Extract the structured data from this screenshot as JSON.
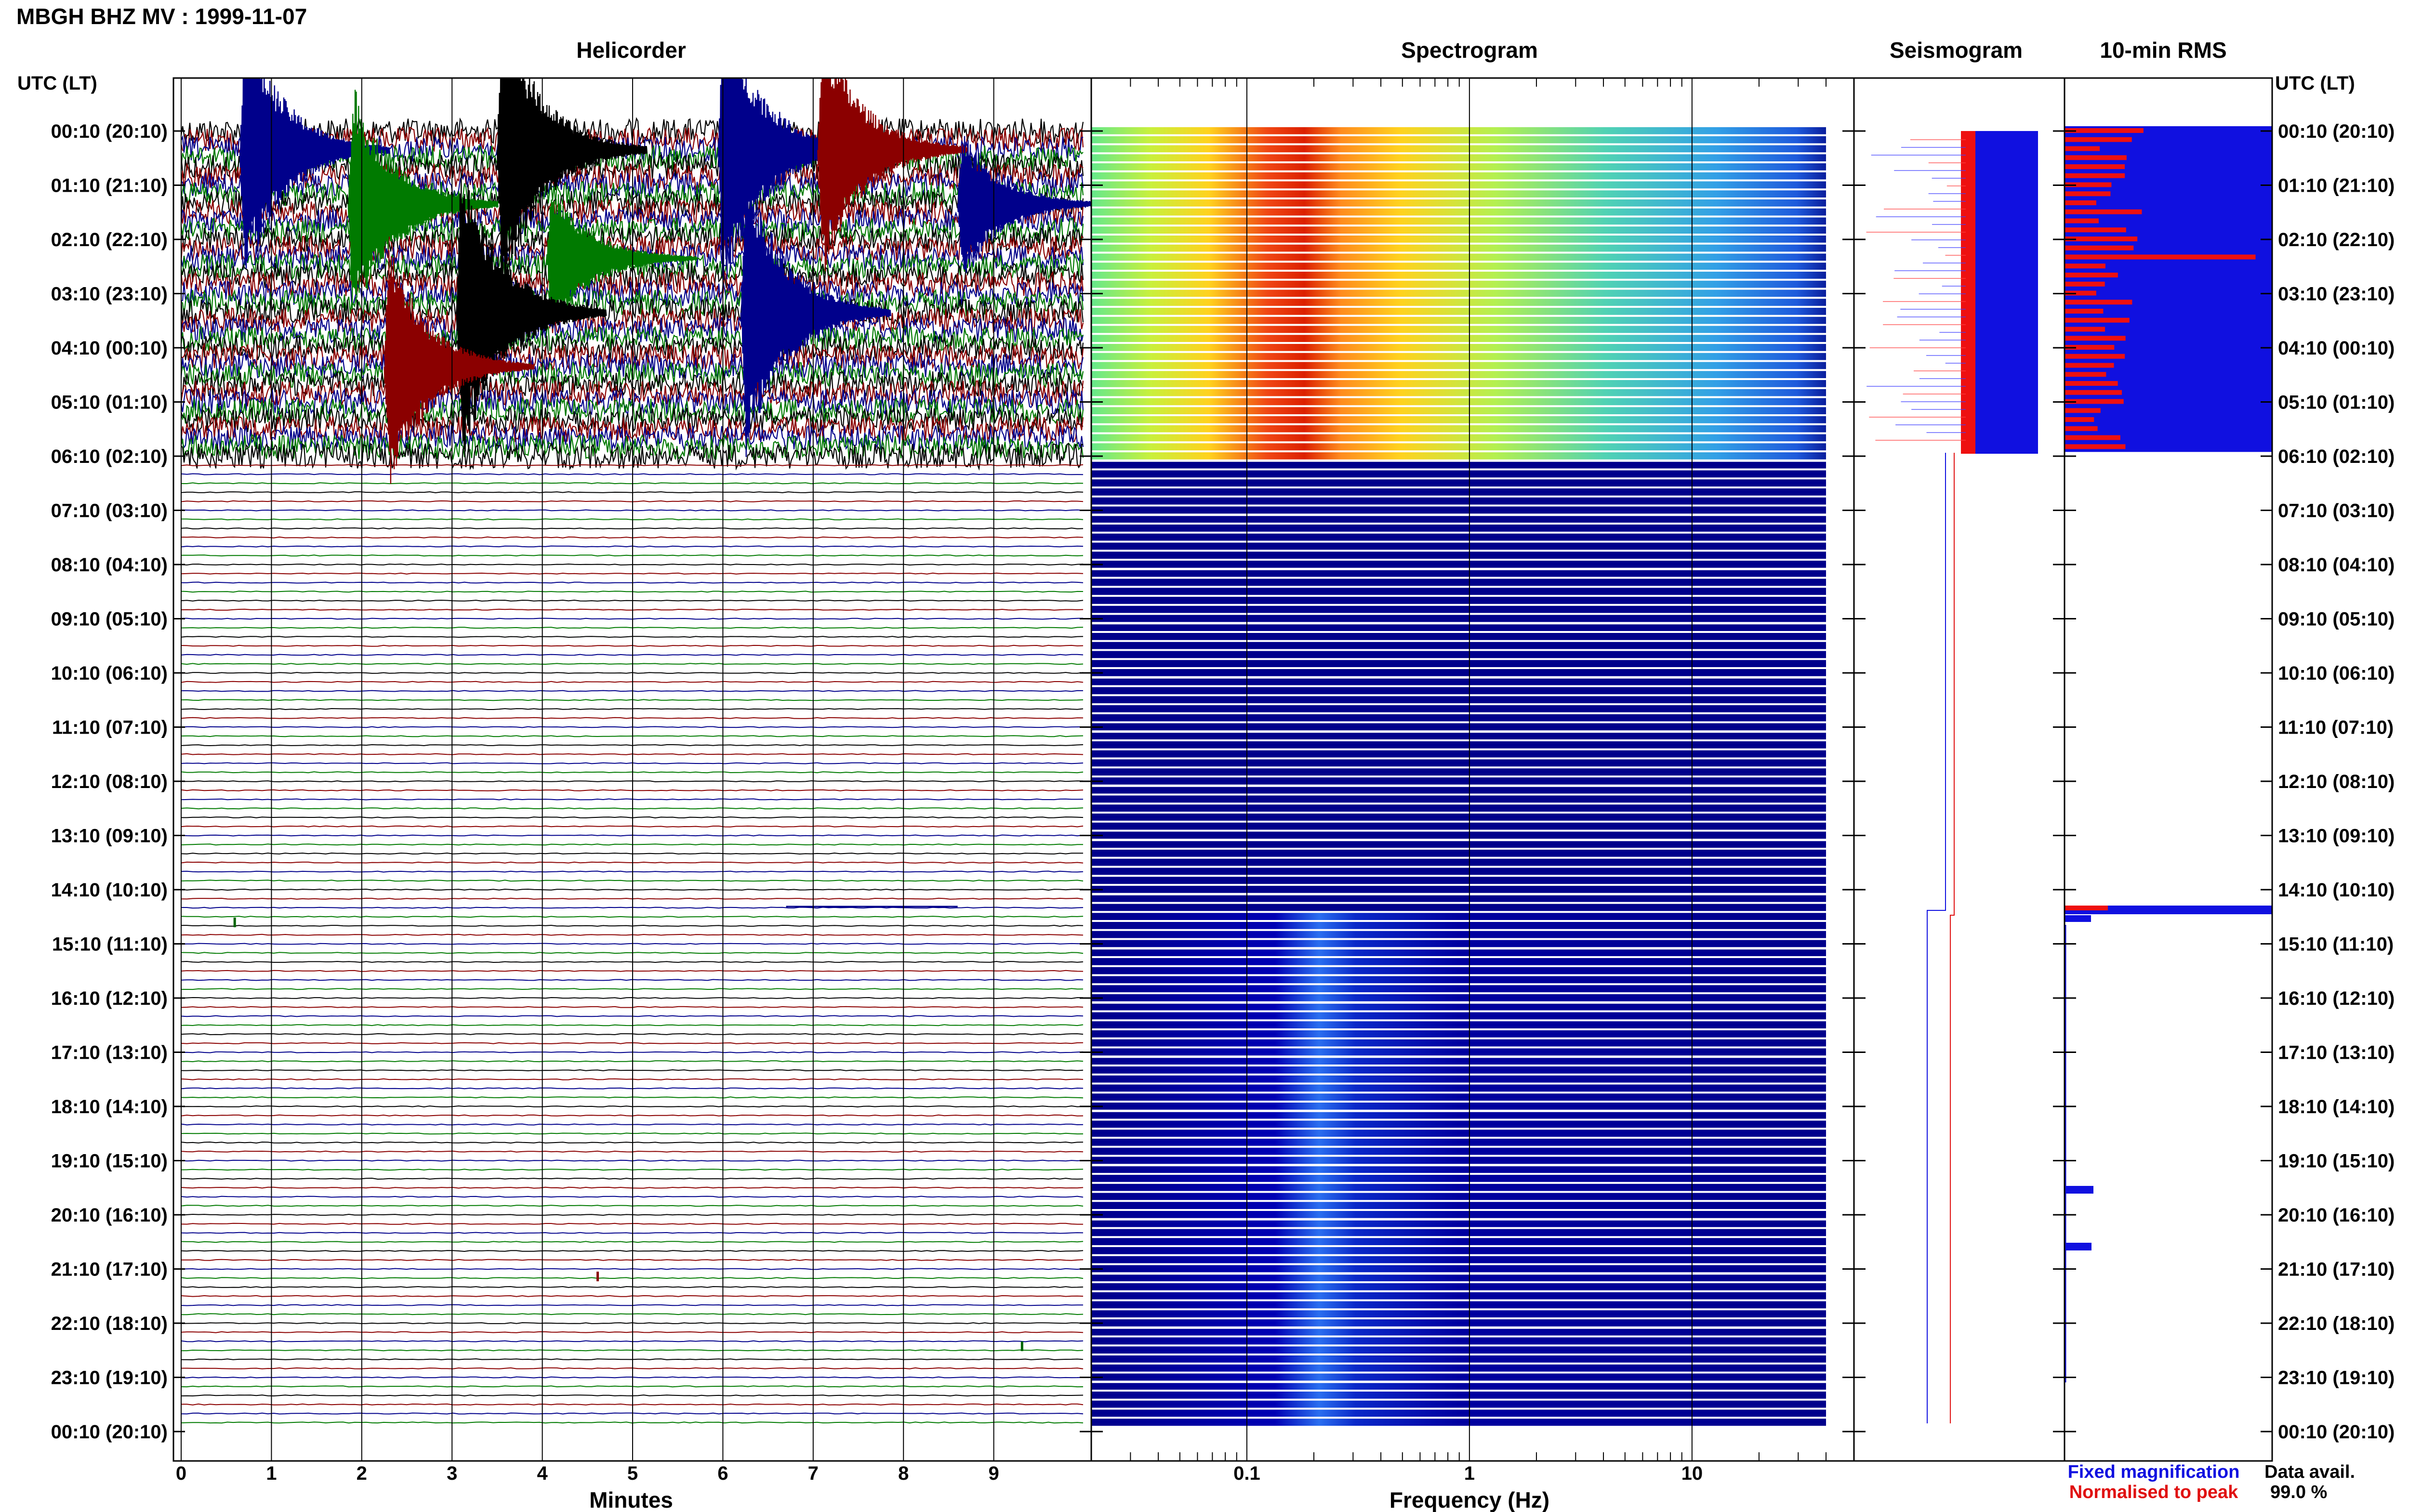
{
  "page_title": "MBGH BHZ MV : 1999-11-07",
  "panels": {
    "helicorder": "Helicorder",
    "spectrogram": "Spectrogram",
    "seismogram": "Seismogram",
    "rms": "10-min RMS"
  },
  "axis_header": "UTC (LT)",
  "row_labels": [
    "00:10 (20:10)",
    "01:10 (21:10)",
    "02:10 (22:10)",
    "03:10 (23:10)",
    "04:10 (00:10)",
    "05:10 (01:10)",
    "06:10 (02:10)",
    "07:10 (03:10)",
    "08:10 (04:10)",
    "09:10 (05:10)",
    "10:10 (06:10)",
    "11:10 (07:10)",
    "12:10 (08:10)",
    "13:10 (09:10)",
    "14:10 (10:10)",
    "15:10 (11:10)",
    "16:10 (12:10)",
    "17:10 (13:10)",
    "18:10 (14:10)",
    "19:10 (15:10)",
    "20:10 (16:10)",
    "21:10 (17:10)",
    "22:10 (18:10)",
    "23:10 (19:10)",
    "00:10 (20:10)"
  ],
  "legend": {
    "fixed": "Fixed magnification",
    "normalised": "Normalised to peak",
    "fixed_color": "#1010e0",
    "normalised_color": "#e01010"
  },
  "data_avail": {
    "label": "Data avail.",
    "value": "99.0 %"
  },
  "colors": {
    "trace_cycle": [
      "#000000",
      "#8b0000",
      "#00008b",
      "#007a00"
    ],
    "spectrogram_background": "#00008b",
    "fixed": "#0000ff",
    "normalised": "#ff0000"
  },
  "chart_data": [
    {
      "type": "line",
      "name": "Helicorder",
      "title": "Helicorder",
      "xlabel": "Minutes",
      "x_ticks": [
        0,
        1,
        2,
        3,
        4,
        5,
        6,
        7,
        8,
        9
      ],
      "xlim": [
        0,
        10
      ],
      "line_interval_minutes": 10,
      "hours_covered": 24,
      "high_amplitude_period_utc": "00:10-06:10",
      "events": [
        {
          "row_time": "00:10",
          "minute": 0.65,
          "color": "#00008b",
          "relative_amplitude": 0.9
        },
        {
          "row_time": "00:10",
          "minute": 3.5,
          "color": "#000000",
          "relative_amplitude": 1.0
        },
        {
          "row_time": "00:10",
          "minute": 5.95,
          "color": "#00008b",
          "relative_amplitude": 1.0
        },
        {
          "row_time": "00:10",
          "minute": 7.05,
          "color": "#8b0000",
          "relative_amplitude": 0.85
        },
        {
          "row_time": "01:10",
          "minute": 1.85,
          "color": "#007a00",
          "relative_amplitude": 0.8
        },
        {
          "row_time": "01:10",
          "minute": 8.6,
          "color": "#00008b",
          "relative_amplitude": 0.5
        },
        {
          "row_time": "02:10",
          "minute": 4.05,
          "color": "#007a00",
          "relative_amplitude": 0.5
        },
        {
          "row_time": "03:10",
          "minute": 3.05,
          "color": "#000000",
          "relative_amplitude": 1.0
        },
        {
          "row_time": "03:10",
          "minute": 6.2,
          "color": "#00008b",
          "relative_amplitude": 1.0
        },
        {
          "row_time": "04:10",
          "minute": 2.25,
          "color": "#8b0000",
          "relative_amplitude": 0.8
        }
      ]
    },
    {
      "type": "heatmap",
      "name": "Spectrogram",
      "title": "Spectrogram",
      "xlabel": "Frequency (Hz)",
      "x_scale": "log",
      "x_ticks": [
        0.1,
        1,
        10
      ],
      "xlim": [
        0.02,
        40
      ],
      "peak_band_hz": [
        0.22,
        0.45
      ],
      "active_period_utc": "00:10-06:10",
      "later_faint_band_hz": [
        0.22,
        0.3
      ]
    },
    {
      "type": "line",
      "name": "Seismogram",
      "title": "Seismogram",
      "series": [
        {
          "name": "Fixed magnification"
        },
        {
          "name": "Normalised to peak"
        }
      ]
    },
    {
      "type": "bar",
      "name": "10-min RMS",
      "title": "10-min RMS",
      "orientation": "horizontal",
      "bin_minutes": 10,
      "rows_utc": [
        "00:10-06:10 (high, saturated)",
        "14:45 (spike)",
        "20:00 (small)",
        "20:50 (small)"
      ],
      "series": [
        {
          "name": "Fixed magnification",
          "values": [
            1.0,
            1.0,
            0.14,
            0.13
          ]
        },
        {
          "name": "Normalised to peak",
          "values": [
            0.28,
            0.22,
            0.0,
            0.0
          ]
        }
      ]
    }
  ]
}
